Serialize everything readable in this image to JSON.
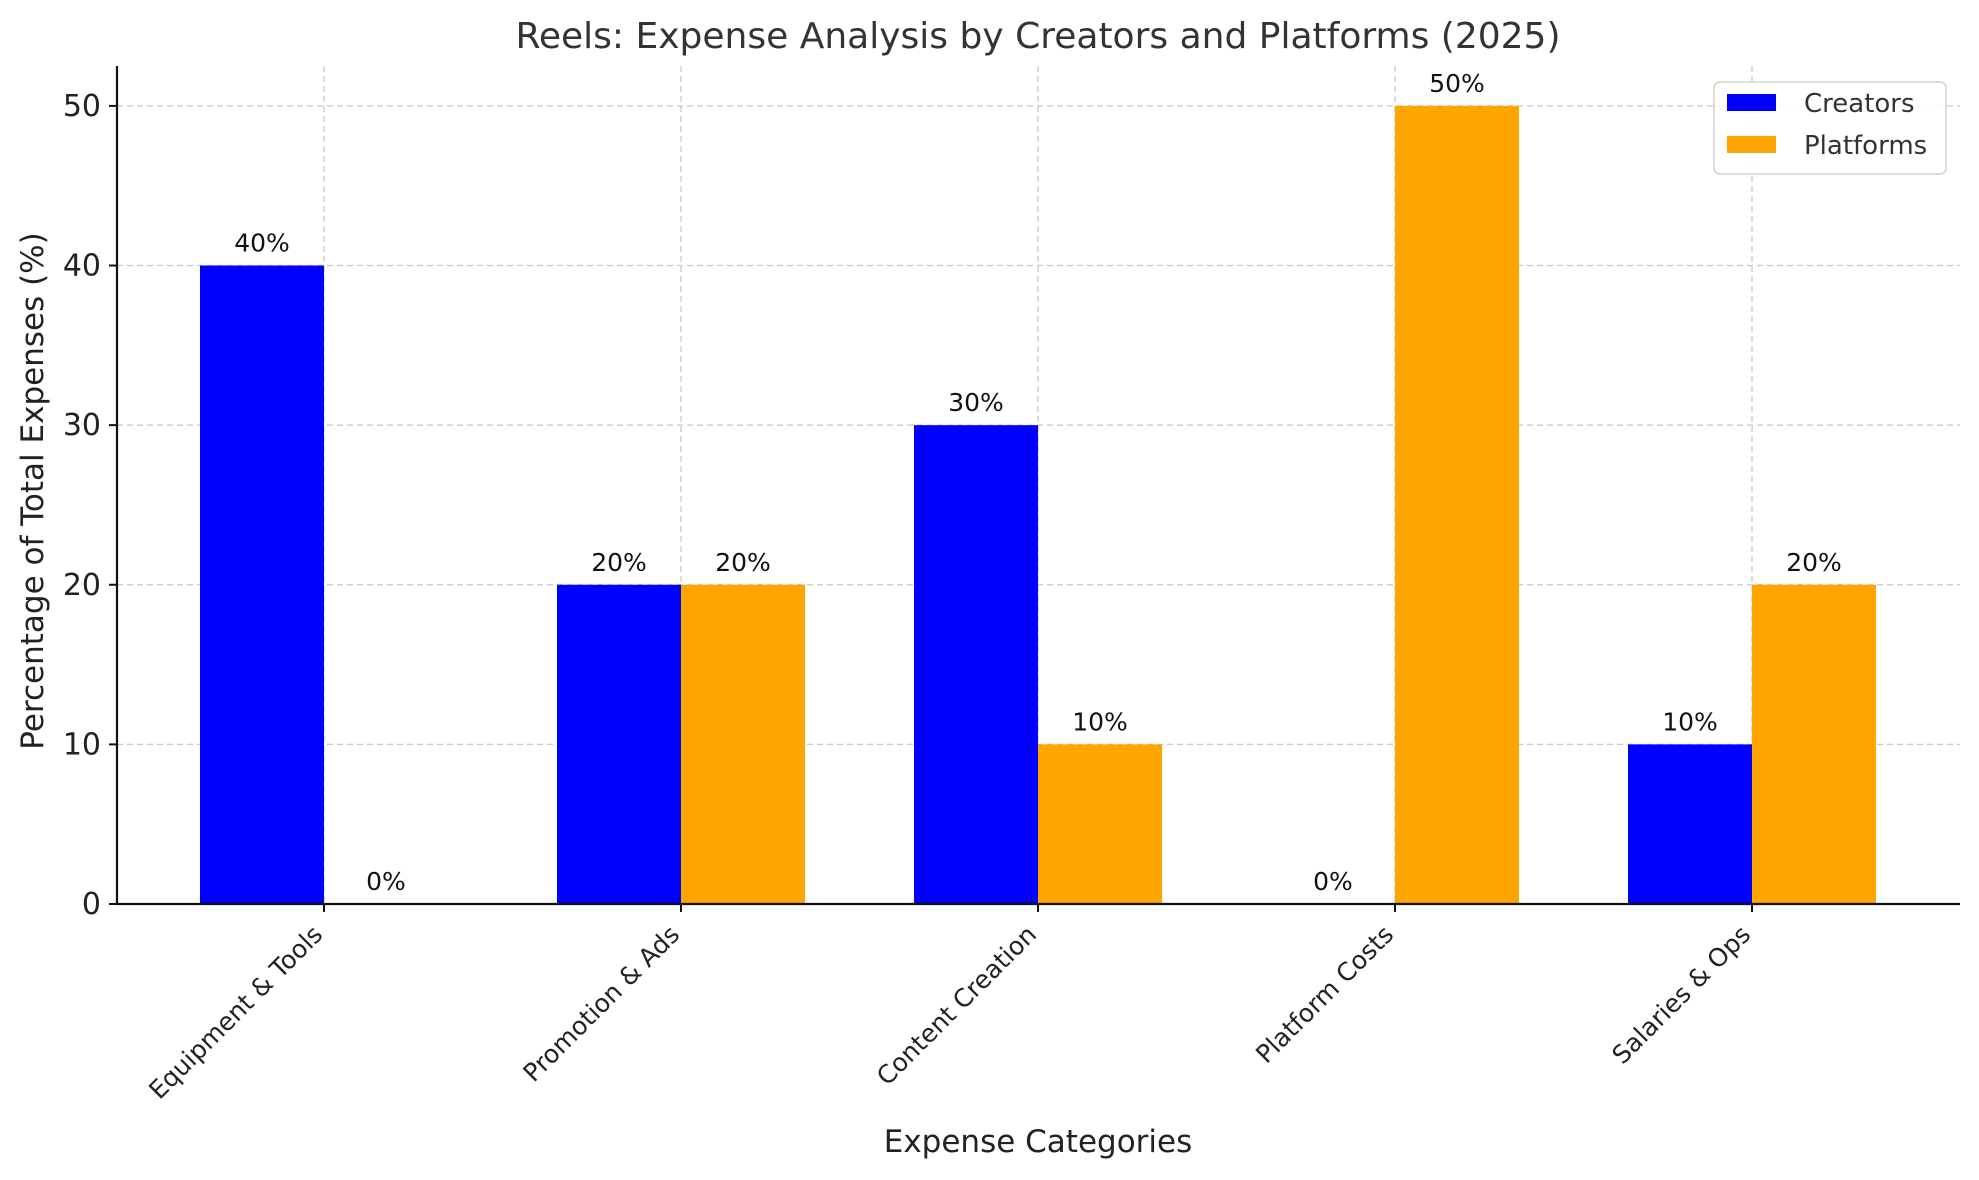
{
  "chart_data": {
    "type": "bar",
    "title": "Reels: Expense Analysis by Creators and Platforms (2025)",
    "xlabel": "Expense Categories",
    "ylabel": "Percentage of Total Expenses (%)",
    "ylim": [
      0,
      52.5
    ],
    "yticks": [
      0,
      10,
      20,
      30,
      40,
      50
    ],
    "grid": true,
    "legend_position": "top-right",
    "categories": [
      "Equipment & Tools",
      "Promotion & Ads",
      "Content Creation",
      "Platform Costs",
      "Salaries & Ops"
    ],
    "series": [
      {
        "name": "Creators",
        "color": "#0000ff",
        "values": [
          40,
          20,
          30,
          0,
          10
        ],
        "labels": [
          "40%",
          "20%",
          "30%",
          "0%",
          "10%"
        ]
      },
      {
        "name": "Platforms",
        "color": "#ffa500",
        "values": [
          0,
          20,
          10,
          50,
          20
        ],
        "labels": [
          "0%",
          "20%",
          "10%",
          "50%",
          "20%"
        ]
      }
    ]
  }
}
